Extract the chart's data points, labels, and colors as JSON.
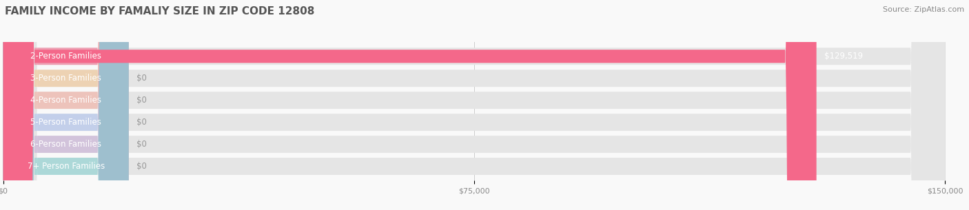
{
  "title": "FAMILY INCOME BY FAMALIY SIZE IN ZIP CODE 12808",
  "source": "Source: ZipAtlas.com",
  "categories": [
    "2-Person Families",
    "3-Person Families",
    "4-Person Families",
    "5-Person Families",
    "6-Person Families",
    "7+ Person Families"
  ],
  "values": [
    129519,
    0,
    0,
    0,
    0,
    0
  ],
  "bar_colors": [
    "#F4688A",
    "#F5C48A",
    "#F4A89A",
    "#A8BEEF",
    "#C4A8D4",
    "#7ECECE"
  ],
  "xlim": [
    0,
    150000
  ],
  "xticks": [
    0,
    75000,
    150000
  ],
  "xticklabels": [
    "$0",
    "$75,000",
    "$150,000"
  ],
  "bar_label_value": [
    "$129,519",
    "$0",
    "$0",
    "$0",
    "$0",
    "$0"
  ],
  "background_color": "#f9f9f9",
  "title_fontsize": 11,
  "source_fontsize": 8,
  "tick_fontsize": 8,
  "label_fontsize": 8.5
}
